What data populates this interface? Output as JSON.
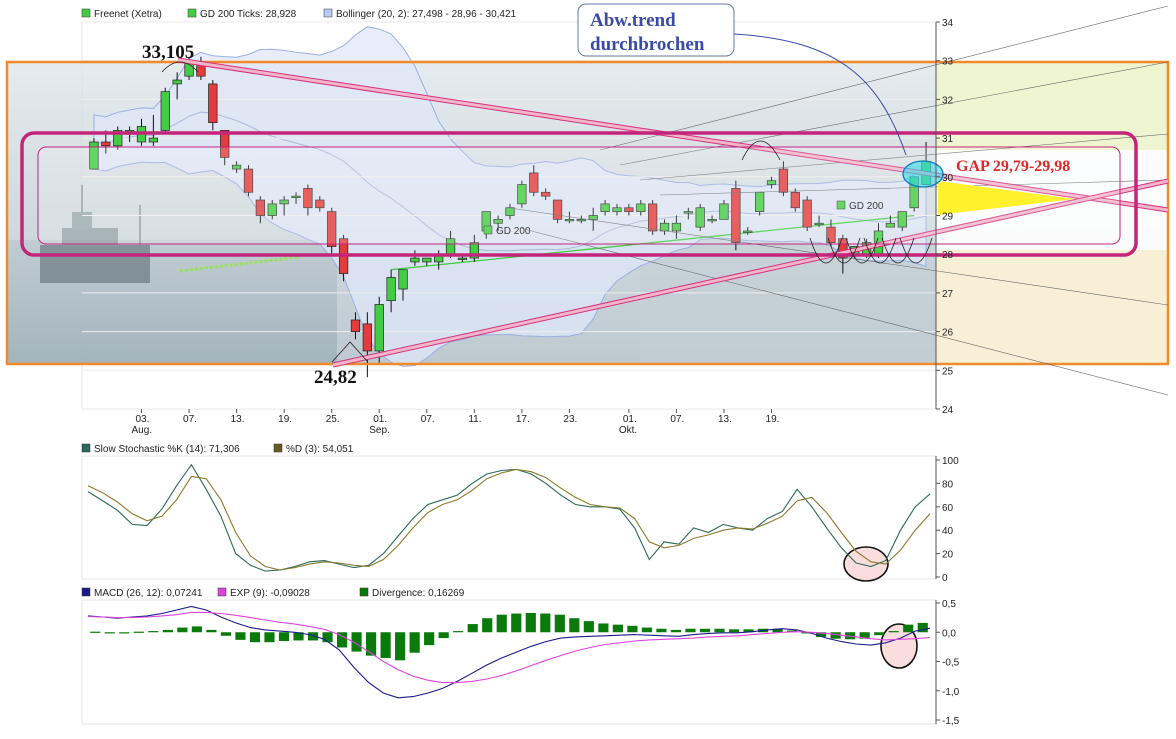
{
  "legend_price": [
    {
      "label": "Freenet (Xetra)",
      "color": "#44cc44"
    },
    {
      "label": "GD 200 Ticks: 28,928",
      "color": "#44cc44"
    },
    {
      "label": "Bollinger (20, 2): 27,498 - 28,96 - 30,421",
      "color": "#b8c8ee"
    }
  ],
  "legend_stoch": [
    {
      "label": "Slow Stochastic %K (14): 71,306",
      "color": "#2a6a5a"
    },
    {
      "label": "%D (3): 54,051",
      "color": "#6b5a20"
    }
  ],
  "legend_macd": [
    {
      "label": "MACD (26, 12): 0,07241",
      "color": "#1a1a8c"
    },
    {
      "label": "EXP (9): -0,09028",
      "color": "#dd44dd"
    },
    {
      "label": "Divergence: 0,16269",
      "color": "#0a7a0a"
    }
  ],
  "annotations": {
    "high_label": "33,105",
    "low_label": "24,82",
    "trend_box_line1": "Abw.trend",
    "trend_box_line2": "durchbrochen",
    "gap_label": "GAP 29,79-29,98",
    "gd200_label_1": "GD 200",
    "gd200_label_2": "GD 200"
  },
  "x_axis": [
    {
      "label": "03.",
      "sub": "Aug."
    },
    {
      "label": "07.",
      "sub": ""
    },
    {
      "label": "13.",
      "sub": ""
    },
    {
      "label": "19.",
      "sub": ""
    },
    {
      "label": "25.",
      "sub": ""
    },
    {
      "label": "01.",
      "sub": "Sep."
    },
    {
      "label": "07.",
      "sub": ""
    },
    {
      "label": "11.",
      "sub": ""
    },
    {
      "label": "17.",
      "sub": ""
    },
    {
      "label": "23.",
      "sub": ""
    },
    {
      "label": "01.",
      "sub": "Okt."
    },
    {
      "label": "07.",
      "sub": ""
    },
    {
      "label": "13.",
      "sub": ""
    },
    {
      "label": "19.",
      "sub": ""
    }
  ],
  "chart_data": [
    {
      "type": "candlestick",
      "series_name": "Freenet (Xetra)",
      "ylim": [
        24,
        34
      ],
      "y_ticks": [
        "24",
        "25",
        "26",
        "27",
        "28",
        "29",
        "30",
        "31",
        "32",
        "33",
        "34"
      ],
      "ohlc": [
        [
          30.2,
          31.0,
          30.2,
          30.9
        ],
        [
          30.9,
          31.2,
          30.6,
          30.8
        ],
        [
          30.8,
          31.3,
          30.7,
          31.2
        ],
        [
          31.1,
          31.3,
          30.9,
          31.2
        ],
        [
          30.9,
          31.5,
          30.8,
          31.3
        ],
        [
          30.9,
          31.6,
          30.8,
          31.0
        ],
        [
          31.2,
          32.3,
          31.1,
          32.2
        ],
        [
          32.4,
          32.7,
          32.0,
          32.5
        ],
        [
          32.6,
          33.1,
          32.5,
          33.0
        ],
        [
          32.9,
          33.1,
          32.5,
          32.6
        ],
        [
          32.4,
          32.5,
          31.2,
          31.4
        ],
        [
          31.2,
          31.2,
          30.3,
          30.5
        ],
        [
          30.2,
          30.4,
          30.1,
          30.3
        ],
        [
          30.2,
          30.3,
          29.5,
          29.6
        ],
        [
          29.4,
          29.5,
          28.8,
          29.0
        ],
        [
          29.0,
          29.4,
          28.9,
          29.3
        ],
        [
          29.3,
          29.5,
          29.0,
          29.4
        ],
        [
          29.5,
          29.6,
          29.3,
          29.5
        ],
        [
          29.7,
          29.8,
          29.0,
          29.2
        ],
        [
          29.4,
          29.5,
          29.1,
          29.2
        ],
        [
          29.1,
          29.2,
          28.0,
          28.2
        ],
        [
          28.4,
          28.5,
          27.3,
          27.5
        ],
        [
          26.3,
          26.5,
          25.8,
          26.0
        ],
        [
          26.2,
          26.5,
          24.82,
          25.5
        ],
        [
          25.5,
          26.9,
          25.2,
          26.7
        ],
        [
          26.8,
          27.6,
          26.5,
          27.4
        ],
        [
          27.1,
          27.6,
          26.8,
          27.6
        ],
        [
          27.8,
          28.1,
          27.7,
          27.9
        ],
        [
          27.8,
          27.9,
          27.7,
          27.9
        ],
        [
          27.8,
          28.1,
          27.6,
          28.0
        ],
        [
          28.0,
          28.6,
          27.9,
          28.4
        ],
        [
          27.9,
          28.0,
          27.8,
          27.9
        ],
        [
          27.9,
          28.5,
          27.8,
          28.3
        ],
        [
          28.6,
          29.1,
          28.4,
          29.1
        ],
        [
          28.8,
          29.0,
          28.6,
          28.9
        ],
        [
          29.0,
          29.3,
          28.9,
          29.2
        ],
        [
          29.3,
          29.9,
          29.2,
          29.8
        ],
        [
          30.1,
          30.3,
          29.5,
          29.6
        ],
        [
          29.6,
          29.7,
          29.4,
          29.5
        ],
        [
          29.4,
          29.4,
          28.8,
          28.9
        ],
        [
          28.9,
          29.1,
          28.8,
          28.9
        ],
        [
          28.9,
          29.0,
          28.8,
          28.9
        ],
        [
          28.9,
          29.2,
          28.6,
          29.0
        ],
        [
          29.1,
          29.4,
          29.0,
          29.3
        ],
        [
          29.1,
          29.3,
          29.0,
          29.2
        ],
        [
          29.2,
          29.3,
          29.0,
          29.1
        ],
        [
          29.1,
          29.4,
          29.0,
          29.3
        ],
        [
          29.3,
          29.4,
          28.5,
          28.6
        ],
        [
          28.6,
          28.9,
          28.5,
          28.8
        ],
        [
          28.6,
          29.0,
          28.4,
          28.8
        ],
        [
          29.1,
          29.2,
          28.9,
          29.1
        ],
        [
          28.7,
          29.3,
          28.6,
          29.2
        ],
        [
          28.9,
          29.0,
          28.8,
          28.9
        ],
        [
          28.9,
          29.4,
          28.9,
          29.3
        ],
        [
          29.7,
          29.9,
          28.1,
          28.3
        ],
        [
          28.6,
          28.7,
          28.5,
          28.6
        ],
        [
          29.1,
          29.6,
          29.0,
          29.6
        ],
        [
          29.8,
          30.0,
          29.7,
          29.9
        ],
        [
          30.2,
          30.4,
          29.5,
          29.6
        ],
        [
          29.6,
          29.7,
          29.1,
          29.2
        ],
        [
          29.4,
          29.5,
          28.6,
          28.7
        ],
        [
          28.8,
          29.0,
          28.7,
          28.8
        ],
        [
          28.7,
          28.9,
          28.2,
          28.3
        ],
        [
          28.4,
          28.5,
          27.5,
          27.9
        ],
        [
          28.0,
          28.2,
          27.9,
          28.2
        ],
        [
          28.0,
          28.4,
          27.9,
          28.3
        ],
        [
          28.0,
          28.8,
          27.9,
          28.6
        ],
        [
          28.7,
          29.0,
          28.7,
          28.8
        ],
        [
          28.7,
          29.1,
          28.6,
          29.1
        ],
        [
          29.2,
          30.0,
          29.1,
          30.0
        ],
        [
          29.8,
          30.9,
          29.8,
          30.4
        ]
      ]
    },
    {
      "type": "line",
      "title": "Slow Stochastic",
      "ylim": [
        0,
        100
      ],
      "y_ticks": [
        "0",
        "20",
        "40",
        "60",
        "80",
        "100"
      ],
      "series": [
        {
          "name": "%K",
          "values": [
            73,
            65,
            57,
            45,
            44,
            58,
            78,
            96,
            75,
            52,
            20,
            10,
            5,
            6,
            9,
            13,
            14,
            11,
            8,
            10,
            20,
            35,
            50,
            62,
            66,
            70,
            80,
            88,
            91,
            92,
            88,
            80,
            70,
            62,
            60,
            60,
            58,
            42,
            15,
            30,
            28,
            42,
            38,
            45,
            42,
            40,
            50,
            56,
            75,
            60,
            42,
            25,
            12,
            9,
            14,
            40,
            60,
            71
          ]
        },
        {
          "name": "%D",
          "values": [
            78,
            72,
            64,
            54,
            48,
            52,
            66,
            86,
            84,
            66,
            38,
            18,
            9,
            6,
            8,
            11,
            13,
            12,
            10,
            9,
            15,
            27,
            42,
            55,
            62,
            66,
            74,
            84,
            89,
            92,
            90,
            85,
            76,
            68,
            62,
            60,
            59,
            50,
            30,
            25,
            27,
            33,
            36,
            40,
            42,
            41,
            46,
            52,
            65,
            68,
            55,
            38,
            22,
            13,
            11,
            23,
            40,
            54
          ]
        }
      ]
    },
    {
      "type": "line",
      "title": "MACD",
      "ylim": [
        -1.5,
        0.5
      ],
      "y_ticks": [
        "-1,5",
        "-1,0",
        "-0,5",
        "0,0",
        "0,5"
      ],
      "series": [
        {
          "name": "MACD",
          "values": [
            0.28,
            0.26,
            0.24,
            0.26,
            0.28,
            0.32,
            0.38,
            0.44,
            0.38,
            0.26,
            0.16,
            0.08,
            0.04,
            0.02,
            0.0,
            -0.04,
            -0.12,
            -0.3,
            -0.6,
            -0.86,
            -1.04,
            -1.12,
            -1.1,
            -1.04,
            -0.96,
            -0.84,
            -0.7,
            -0.56,
            -0.44,
            -0.34,
            -0.24,
            -0.16,
            -0.1,
            -0.08,
            -0.07,
            -0.06,
            -0.05,
            -0.04,
            -0.05,
            -0.06,
            -0.07,
            -0.04,
            -0.02,
            -0.01,
            -0.01,
            0.01,
            0.04,
            0.06,
            0.04,
            -0.02,
            -0.1,
            -0.16,
            -0.2,
            -0.22,
            -0.18,
            -0.1,
            0.02,
            0.07
          ]
        },
        {
          "name": "EXP",
          "values": [
            0.27,
            0.26,
            0.25,
            0.25,
            0.26,
            0.28,
            0.3,
            0.34,
            0.34,
            0.32,
            0.29,
            0.25,
            0.21,
            0.17,
            0.14,
            0.1,
            0.05,
            -0.04,
            -0.17,
            -0.33,
            -0.5,
            -0.64,
            -0.75,
            -0.82,
            -0.86,
            -0.86,
            -0.84,
            -0.8,
            -0.74,
            -0.66,
            -0.57,
            -0.48,
            -0.4,
            -0.32,
            -0.26,
            -0.21,
            -0.18,
            -0.15,
            -0.13,
            -0.12,
            -0.11,
            -0.1,
            -0.08,
            -0.07,
            -0.06,
            -0.04,
            -0.02,
            0.0,
            0.01,
            0.0,
            -0.02,
            -0.05,
            -0.08,
            -0.11,
            -0.13,
            -0.12,
            -0.11,
            -0.09
          ]
        },
        {
          "name": "Divergence",
          "values": [
            0.01,
            0.0,
            -0.01,
            0.01,
            0.02,
            0.04,
            0.08,
            0.1,
            0.04,
            -0.06,
            -0.13,
            -0.17,
            -0.17,
            -0.15,
            -0.14,
            -0.14,
            -0.17,
            -0.26,
            -0.33,
            -0.4,
            -0.44,
            -0.48,
            -0.35,
            -0.22,
            -0.1,
            0.02,
            0.14,
            0.24,
            0.3,
            0.32,
            0.33,
            0.32,
            0.3,
            0.24,
            0.19,
            0.15,
            0.13,
            0.11,
            0.08,
            0.06,
            0.04,
            0.06,
            0.06,
            0.06,
            0.05,
            0.05,
            0.06,
            0.06,
            0.03,
            -0.02,
            -0.08,
            -0.11,
            -0.12,
            -0.11,
            -0.05,
            0.02,
            0.13,
            0.16
          ]
        }
      ]
    }
  ]
}
